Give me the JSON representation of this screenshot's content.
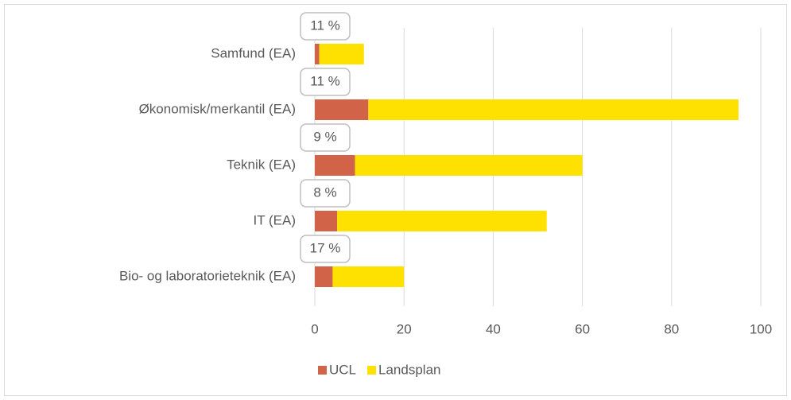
{
  "chart_data": {
    "type": "bar",
    "orientation": "horizontal",
    "stacked": true,
    "categories": [
      "Samfund (EA)",
      "Økonomisk/merkantil (EA)",
      "Teknik (EA)",
      "IT (EA)",
      "Bio- og laboratorieteknik (EA)"
    ],
    "series": [
      {
        "name": "UCL",
        "color": "#d16349",
        "values": [
          1,
          12,
          9,
          5,
          4
        ]
      },
      {
        "name": "Landsplan",
        "color": "#ffe100",
        "values": [
          10,
          83,
          51,
          47,
          16
        ]
      }
    ],
    "annotations": [
      "11 %",
      "11 %",
      "9 %",
      "8 %",
      "17 %"
    ],
    "xlim": [
      0,
      100
    ],
    "xticks": [
      0,
      20,
      40,
      60,
      80,
      100
    ],
    "grid": true,
    "legend": "bottom"
  }
}
